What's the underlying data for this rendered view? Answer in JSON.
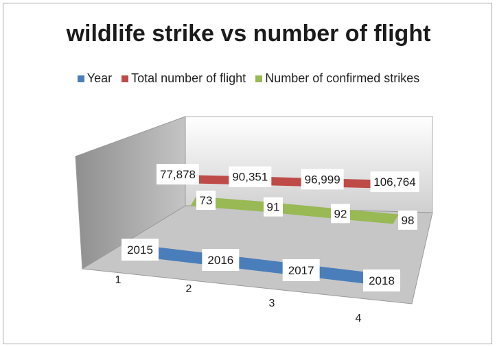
{
  "chart_data": {
    "type": "line",
    "title": "wildlife strike  vs number of flight",
    "categories": [
      "1",
      "2",
      "3",
      "4"
    ],
    "series": [
      {
        "name": "Year",
        "color": "#4a7ebb",
        "values": [
          2015,
          2016,
          2017,
          2018
        ],
        "labels": [
          "2015",
          "2016",
          "2017",
          "2018"
        ]
      },
      {
        "name": "Total number of flight",
        "color": "#be4b48",
        "values": [
          77878,
          90351,
          96999,
          106764
        ],
        "labels": [
          "77,878",
          "90,351",
          "96,999",
          "106,764"
        ]
      },
      {
        "name": "Number of confirmed strikes",
        "color": "#98b954",
        "values": [
          73,
          91,
          92,
          98
        ],
        "labels": [
          "73",
          "91",
          "92",
          "98"
        ]
      }
    ],
    "legend_position": "top",
    "style": "3d-ribbon",
    "grid": false
  }
}
